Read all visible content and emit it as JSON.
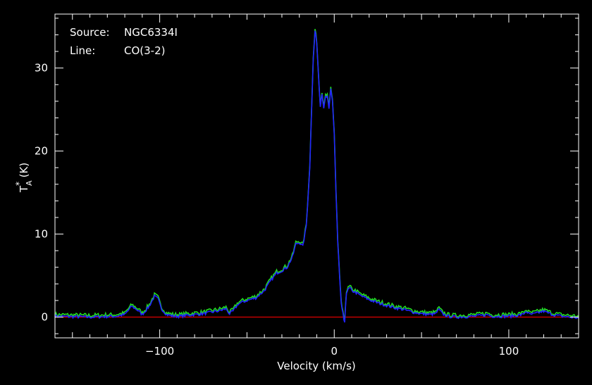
{
  "annotations": {
    "source_label": "Source:",
    "source_value": "NGC6334I",
    "line_label": "Line:",
    "line_value": "CO(3-2)"
  },
  "chart_data": {
    "type": "line",
    "title": "",
    "xlabel": "Velocity (km/s)",
    "ylabel_main": "T",
    "ylabel_super": "*",
    "ylabel_sub": "A",
    "ylabel_unit": "(K)",
    "xlim": [
      -160,
      140
    ],
    "ylim": [
      -2.5,
      36.5
    ],
    "x_ticks": [
      -100,
      0,
      100
    ],
    "x_tick_labels": [
      "−100",
      "0",
      "100"
    ],
    "y_ticks": [
      0,
      10,
      20,
      30
    ],
    "y_tick_labels": [
      "0",
      "10",
      "20",
      "30"
    ],
    "grid": false,
    "colors": {
      "series_green": "#22dd22",
      "series_blue": "#2222ff",
      "baseline": "#dd0000",
      "frame": "#ffffff"
    },
    "series": [
      {
        "x": [
          -160,
          -140,
          -125,
          -120,
          -116,
          -113,
          -110,
          -106,
          -103,
          -101,
          -99,
          -96,
          -92,
          -88,
          -85,
          -80,
          -75,
          -70,
          -65,
          -62,
          -60,
          -58,
          -55,
          -50,
          -45,
          -40,
          -36,
          -33,
          -30,
          -27,
          -24,
          -22,
          -20,
          -18,
          -16,
          -14,
          -13,
          -12,
          -11,
          -10,
          -9,
          -8,
          -7,
          -6,
          -5,
          -4,
          -3,
          -2,
          -1,
          0,
          1,
          2,
          3,
          4,
          5,
          5.5,
          6,
          6.5,
          7,
          8,
          9,
          10,
          12,
          15,
          20,
          25,
          30,
          35,
          40,
          45,
          50,
          55,
          58,
          60,
          62,
          65,
          70,
          80,
          85,
          88,
          90,
          100,
          105,
          108,
          110,
          112,
          115,
          118,
          120,
          125,
          130,
          135,
          140
        ],
        "values": [
          0.1,
          0.0,
          0.1,
          0.3,
          1.3,
          0.9,
          0.3,
          1.3,
          2.5,
          2.2,
          1.0,
          0.3,
          0.1,
          0.1,
          0.2,
          0.3,
          0.4,
          0.6,
          0.8,
          1.0,
          0.4,
          0.7,
          1.6,
          2.0,
          2.3,
          3.2,
          4.5,
          5.3,
          5.6,
          6.0,
          7.2,
          8.8,
          9.0,
          8.5,
          11.0,
          18.0,
          25.0,
          31.0,
          34.5,
          33.0,
          29.0,
          25.5,
          27.0,
          25.0,
          26.5,
          26.5,
          25.0,
          27.5,
          26.0,
          22.0,
          15.0,
          9.0,
          5.0,
          1.5,
          0.5,
          -0.5,
          -0.8,
          1.5,
          3.0,
          3.3,
          3.5,
          3.2,
          3.0,
          2.6,
          2.1,
          1.7,
          1.4,
          1.1,
          0.9,
          0.6,
          0.4,
          0.3,
          0.4,
          0.9,
          0.4,
          0.1,
          0.0,
          0.1,
          0.2,
          0.3,
          0.1,
          0.1,
          0.2,
          0.3,
          0.7,
          0.3,
          0.4,
          0.6,
          0.7,
          0.3,
          0.1,
          0.0,
          -0.1
        ]
      }
    ]
  }
}
